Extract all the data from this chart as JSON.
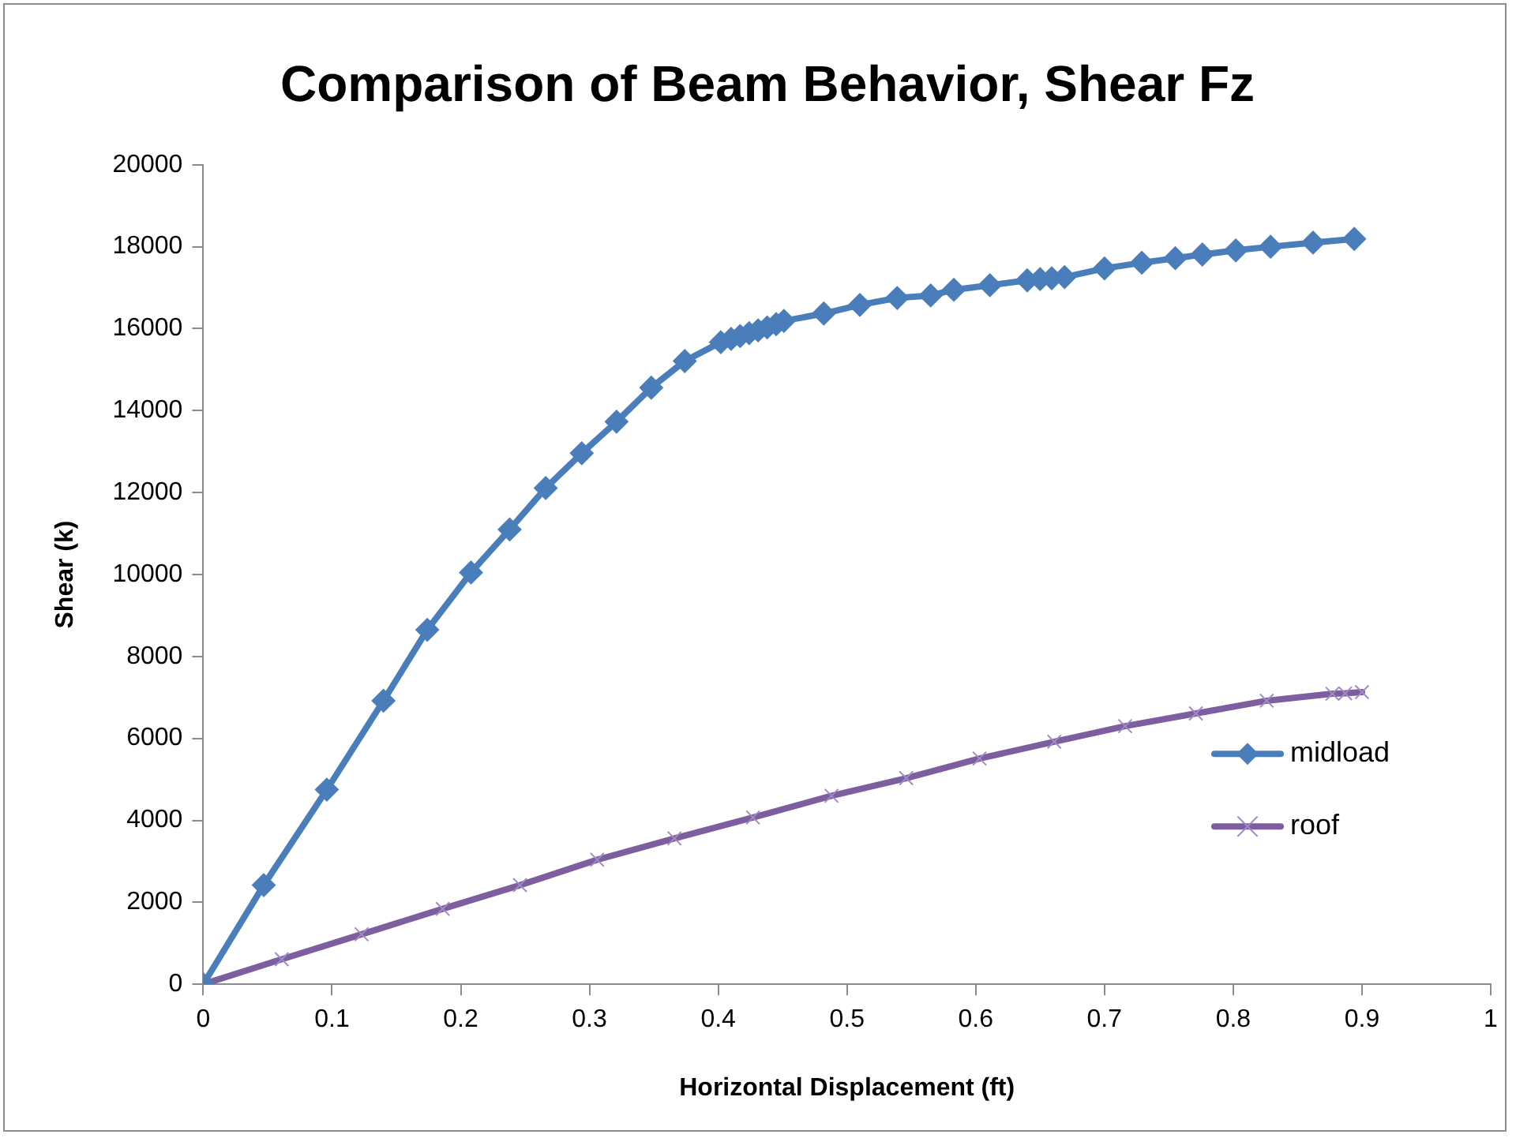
{
  "chart_data": {
    "type": "line",
    "title": "Comparison of Beam Behavior, Shear Fz",
    "xlabel": "Horizontal Displacement (ft)",
    "ylabel": "Shear (k)",
    "xlim": [
      0,
      1
    ],
    "xticks": [
      0,
      0.1,
      0.2,
      0.3,
      0.4,
      0.5,
      0.6,
      0.7,
      0.8,
      0.9,
      1
    ],
    "ylim": [
      0,
      20000
    ],
    "yticks": [
      0,
      2000,
      4000,
      6000,
      8000,
      10000,
      12000,
      14000,
      16000,
      18000,
      20000
    ],
    "grid": false,
    "legend": "right",
    "line_style": "solid",
    "series": [
      {
        "name": "midload",
        "color": "#4a7ebb",
        "marker": "diamond",
        "x": [
          0,
          0.047,
          0.096,
          0.14,
          0.174,
          0.208,
          0.238,
          0.266,
          0.294,
          0.321,
          0.348,
          0.374,
          0.402,
          0.41,
          0.417,
          0.424,
          0.431,
          0.438,
          0.445,
          0.451,
          0.482,
          0.51,
          0.539,
          0.565,
          0.583,
          0.611,
          0.64,
          0.65,
          0.659,
          0.669,
          0.7,
          0.729,
          0.755,
          0.776,
          0.802,
          0.829,
          0.862,
          0.894
        ],
        "values": [
          0,
          2420,
          4750,
          6920,
          8650,
          10050,
          11100,
          12110,
          12960,
          13730,
          14560,
          15210,
          15670,
          15750,
          15820,
          15890,
          15960,
          16030,
          16110,
          16190,
          16370,
          16580,
          16750,
          16810,
          16950,
          17060,
          17180,
          17210,
          17230,
          17260,
          17470,
          17610,
          17720,
          17810,
          17910,
          18000,
          18100,
          18190
        ]
      },
      {
        "name": "roof",
        "color": "#7d5fa0",
        "marker": "cross",
        "x": [
          0,
          0.061,
          0.123,
          0.186,
          0.246,
          0.306,
          0.366,
          0.427,
          0.488,
          0.546,
          0.603,
          0.661,
          0.716,
          0.771,
          0.826,
          0.877,
          0.887,
          0.9
        ],
        "values": [
          0,
          610,
          1220,
          1840,
          2420,
          3040,
          3560,
          4070,
          4600,
          5030,
          5510,
          5920,
          6300,
          6610,
          6920,
          7090,
          7100,
          7130
        ]
      }
    ]
  }
}
